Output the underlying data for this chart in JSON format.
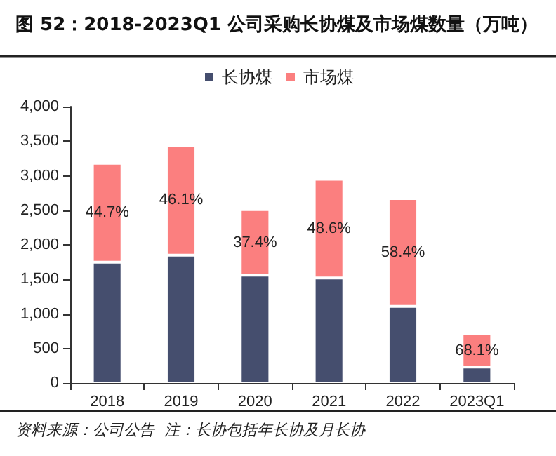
{
  "chart_data": {
    "type": "bar",
    "title": "图 52：2018-2023Q1 公司采购长协煤及市场煤数量（万吨）",
    "stacked": true,
    "categories": [
      "2018",
      "2019",
      "2020",
      "2021",
      "2022",
      "2023Q1"
    ],
    "series": [
      {
        "name": "长协煤",
        "color": "#454e6e",
        "values": [
          1750,
          1850,
          1560,
          1520,
          1110,
          230
        ]
      },
      {
        "name": "市场煤",
        "color": "#fb7f7f",
        "values": [
          1430,
          1590,
          950,
          1430,
          1560,
          480
        ]
      }
    ],
    "ylim": [
      0,
      4000
    ],
    "yticks": [
      0,
      500,
      {
        "value": 1000,
        "label": "1,000"
      },
      {
        "value": 1500,
        "label": "1,500"
      },
      {
        "value": 2000,
        "label": "2,000"
      },
      {
        "value": 2500,
        "label": "2,500"
      },
      {
        "value": 3000,
        "label": "3,000"
      },
      {
        "value": 3500,
        "label": "3,500"
      },
      {
        "value": 4000,
        "label": "4,000"
      }
    ],
    "grid": false,
    "legend": "top",
    "annotations": [
      "44.7%",
      "46.1%",
      "37.4%",
      "48.6%",
      "58.4%",
      "68.1%",
      "资料来源：公司公告  注：长协包括年长协及月长协"
    ]
  }
}
